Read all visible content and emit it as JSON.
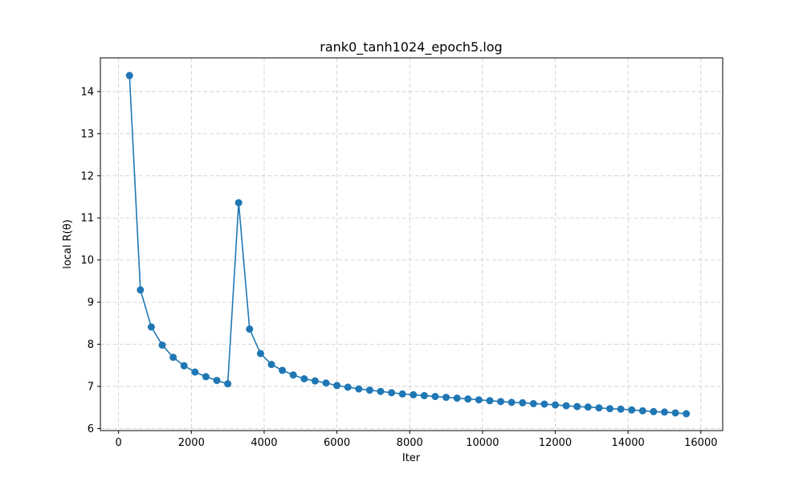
{
  "chart_data": {
    "type": "line",
    "title": "rank0_tanh1024_epoch5.log",
    "xlabel": "Iter",
    "ylabel": "local R(θ)",
    "xlim": [
      -500,
      16600
    ],
    "ylim": [
      5.95,
      14.8
    ],
    "xticks": [
      0,
      2000,
      4000,
      6000,
      8000,
      10000,
      12000,
      14000,
      16000
    ],
    "yticks": [
      6,
      7,
      8,
      9,
      10,
      11,
      12,
      13,
      14
    ],
    "grid": true,
    "series": [
      {
        "color": "#1f77b4",
        "marker": "circle",
        "x": [
          300,
          600,
          900,
          1200,
          1500,
          1800,
          2100,
          2400,
          2700,
          3000,
          3300,
          3600,
          3900,
          4200,
          4500,
          4800,
          5100,
          5400,
          5700,
          6000,
          6300,
          6600,
          6900,
          7200,
          7500,
          7800,
          8100,
          8400,
          8700,
          9000,
          9300,
          9600,
          9900,
          10200,
          10500,
          10800,
          11100,
          11400,
          11700,
          12000,
          12300,
          12600,
          12900,
          13200,
          13500,
          13800,
          14100,
          14400,
          14700,
          15000,
          15300,
          15600
        ],
        "y": [
          14.38,
          9.29,
          8.41,
          7.98,
          7.69,
          7.49,
          7.34,
          7.23,
          7.14,
          7.06,
          11.36,
          8.36,
          7.78,
          7.52,
          7.38,
          7.27,
          7.18,
          7.13,
          7.08,
          7.02,
          6.98,
          6.94,
          6.91,
          6.88,
          6.85,
          6.82,
          6.8,
          6.78,
          6.76,
          6.74,
          6.72,
          6.7,
          6.68,
          6.66,
          6.64,
          6.62,
          6.61,
          6.59,
          6.58,
          6.56,
          6.54,
          6.52,
          6.51,
          6.49,
          6.47,
          6.46,
          6.44,
          6.42,
          6.4,
          6.39,
          6.37,
          6.35
        ]
      }
    ]
  }
}
